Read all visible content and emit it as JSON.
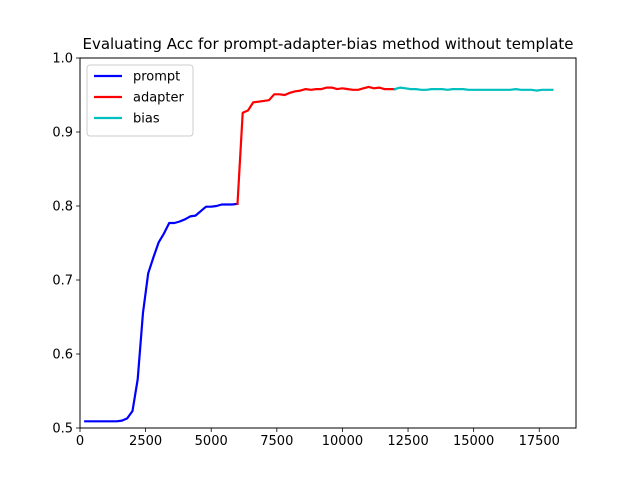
{
  "chart_data": {
    "type": "line",
    "title": "Evaluating Acc for prompt-adapter-bias method without template",
    "xlabel": "",
    "ylabel": "",
    "xlim": [
      0,
      18900
    ],
    "ylim": [
      0.5,
      1.0
    ],
    "x_ticks": [
      0,
      2500,
      5000,
      7500,
      10000,
      12500,
      15000,
      17500
    ],
    "y_ticks": [
      0.5,
      0.6,
      0.7,
      0.8,
      0.9,
      1.0
    ],
    "x_tick_labels": [
      "0",
      "2500",
      "5000",
      "7500",
      "10000",
      "12500",
      "15000",
      "17500"
    ],
    "y_tick_labels": [
      "0.5",
      "0.6",
      "0.7",
      "0.8",
      "0.9",
      "1.0"
    ],
    "grid": false,
    "legend_position": "top-left",
    "series": [
      {
        "name": "prompt",
        "color": "#0000ff",
        "x": [
          200,
          400,
          600,
          800,
          1000,
          1200,
          1400,
          1600,
          1800,
          2000,
          2200,
          2400,
          2600,
          2800,
          3000,
          3200,
          3400,
          3600,
          3800,
          4000,
          4200,
          4400,
          4600,
          4800,
          5000,
          5200,
          5400,
          5600,
          5800,
          6000
        ],
        "y": [
          0.509,
          0.509,
          0.509,
          0.509,
          0.509,
          0.509,
          0.509,
          0.51,
          0.513,
          0.523,
          0.566,
          0.656,
          0.709,
          0.731,
          0.751,
          0.763,
          0.777,
          0.777,
          0.779,
          0.782,
          0.786,
          0.787,
          0.793,
          0.799,
          0.799,
          0.8,
          0.802,
          0.802,
          0.802,
          0.803
        ]
      },
      {
        "name": "adapter",
        "color": "#ff0000",
        "x": [
          6000,
          6200,
          6400,
          6600,
          6800,
          7000,
          7200,
          7400,
          7600,
          7800,
          8000,
          8200,
          8400,
          8600,
          8800,
          9000,
          9200,
          9400,
          9600,
          9800,
          10000,
          10200,
          10400,
          10600,
          10800,
          11000,
          11200,
          11400,
          11600,
          11800,
          12000
        ],
        "y": [
          0.803,
          0.926,
          0.929,
          0.94,
          0.941,
          0.942,
          0.943,
          0.951,
          0.951,
          0.95,
          0.953,
          0.955,
          0.956,
          0.958,
          0.957,
          0.958,
          0.958,
          0.96,
          0.96,
          0.958,
          0.959,
          0.958,
          0.957,
          0.957,
          0.959,
          0.961,
          0.959,
          0.96,
          0.958,
          0.958,
          0.958
        ]
      },
      {
        "name": "bias",
        "color": "#00bfbf",
        "x": [
          12000,
          12200,
          12400,
          12600,
          12800,
          13000,
          13200,
          13400,
          13600,
          13800,
          14000,
          14200,
          14400,
          14600,
          14800,
          15000,
          15200,
          15400,
          15600,
          15800,
          16000,
          16200,
          16400,
          16600,
          16800,
          17000,
          17200,
          17400,
          17600,
          17800,
          18000
        ],
        "y": [
          0.958,
          0.96,
          0.959,
          0.958,
          0.958,
          0.957,
          0.957,
          0.958,
          0.958,
          0.958,
          0.957,
          0.958,
          0.958,
          0.958,
          0.957,
          0.957,
          0.957,
          0.957,
          0.957,
          0.957,
          0.957,
          0.957,
          0.957,
          0.958,
          0.957,
          0.957,
          0.957,
          0.956,
          0.957,
          0.957,
          0.957
        ]
      }
    ]
  }
}
